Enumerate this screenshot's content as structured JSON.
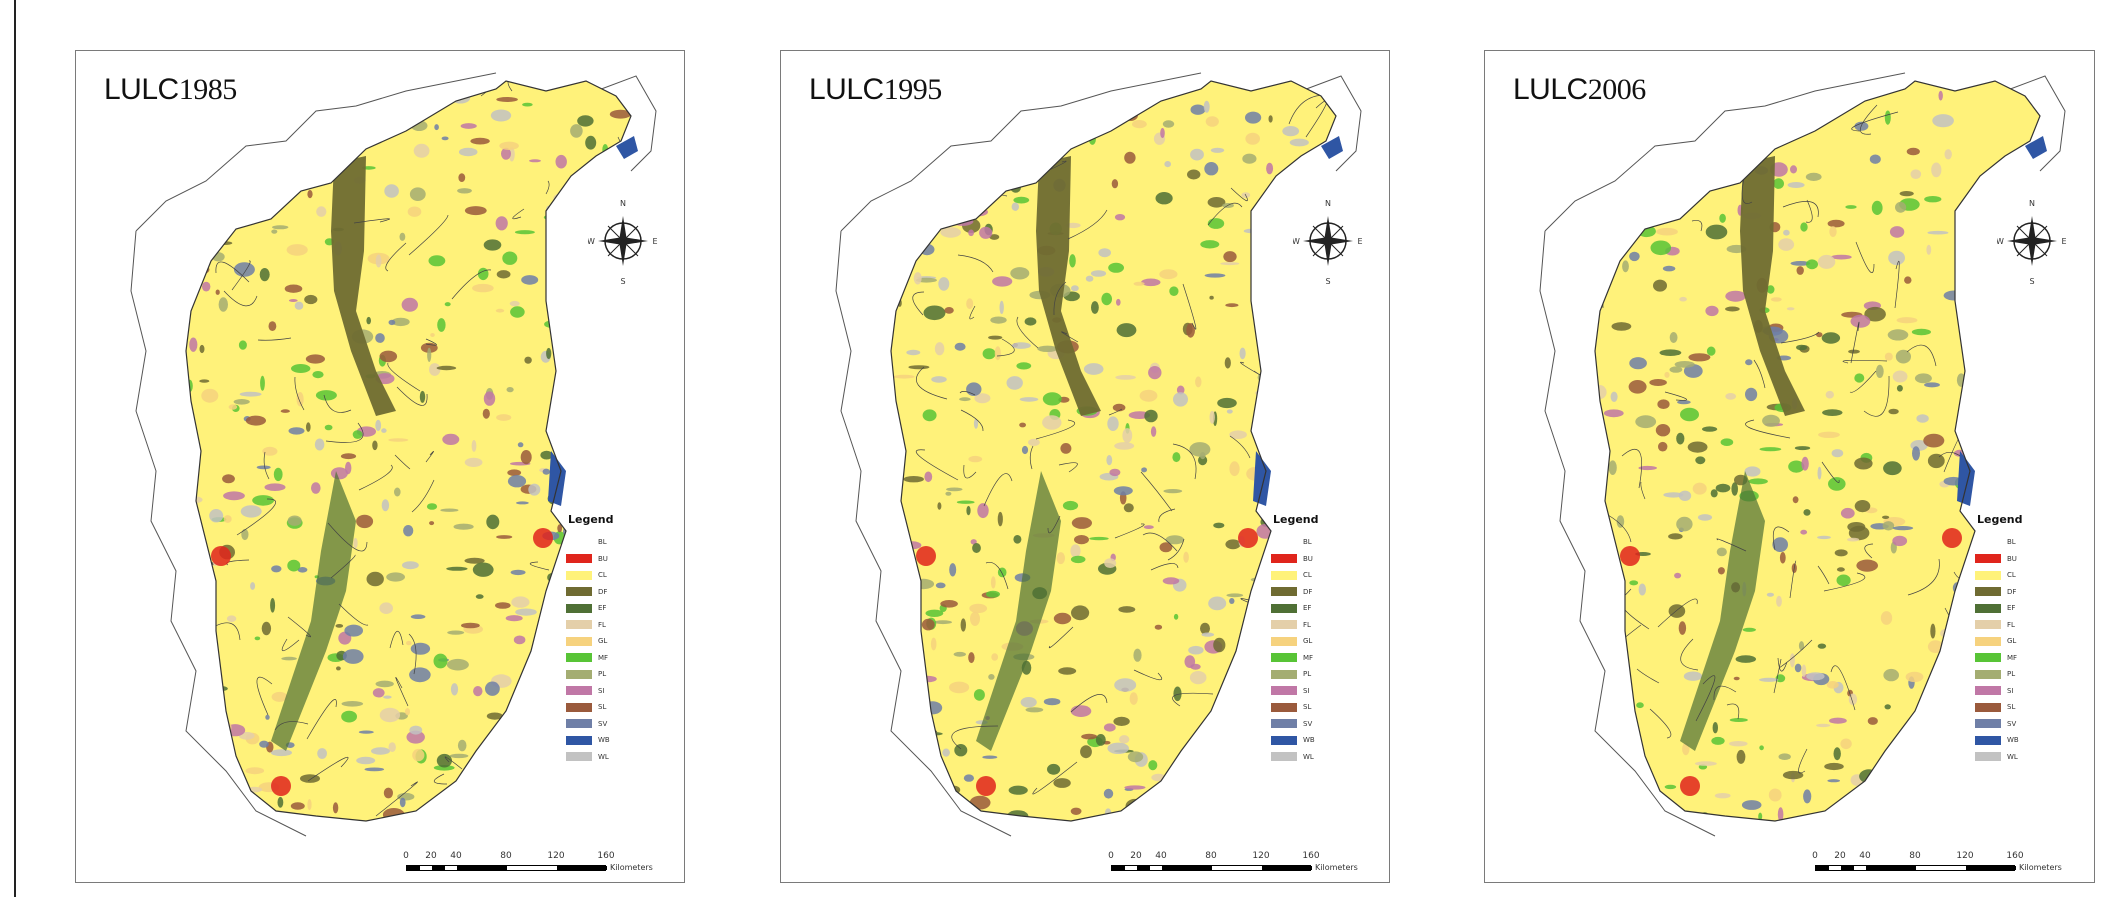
{
  "panels": [
    {
      "title_prefix": "LULC",
      "year": "1985"
    },
    {
      "title_prefix": "LULC",
      "year": "1995"
    },
    {
      "title_prefix": "LULC",
      "year": "2006"
    }
  ],
  "compass": {
    "n": "N",
    "s": "S",
    "e": "E",
    "w": "W"
  },
  "legend": {
    "title": "Legend",
    "items": [
      {
        "code": "BL",
        "color": "#ffffff"
      },
      {
        "code": "BU",
        "color": "#e0251c"
      },
      {
        "code": "CL",
        "color": "#fff27a"
      },
      {
        "code": "DF",
        "color": "#6f6b32"
      },
      {
        "code": "EF",
        "color": "#4f7035"
      },
      {
        "code": "FL",
        "color": "#e4cfa9"
      },
      {
        "code": "GL",
        "color": "#f6d27e"
      },
      {
        "code": "MF",
        "color": "#58c436"
      },
      {
        "code": "PL",
        "color": "#a4ad72"
      },
      {
        "code": "SI",
        "color": "#c077a6"
      },
      {
        "code": "SL",
        "color": "#9a5a3c"
      },
      {
        "code": "SV",
        "color": "#6f7fa7"
      },
      {
        "code": "WB",
        "color": "#2f56a4"
      },
      {
        "code": "WL",
        "color": "#c2c2c2"
      }
    ]
  },
  "scale": {
    "ticks": [
      "0",
      "20",
      "40",
      "80",
      "120",
      "160"
    ],
    "unit": "Kilometers"
  }
}
